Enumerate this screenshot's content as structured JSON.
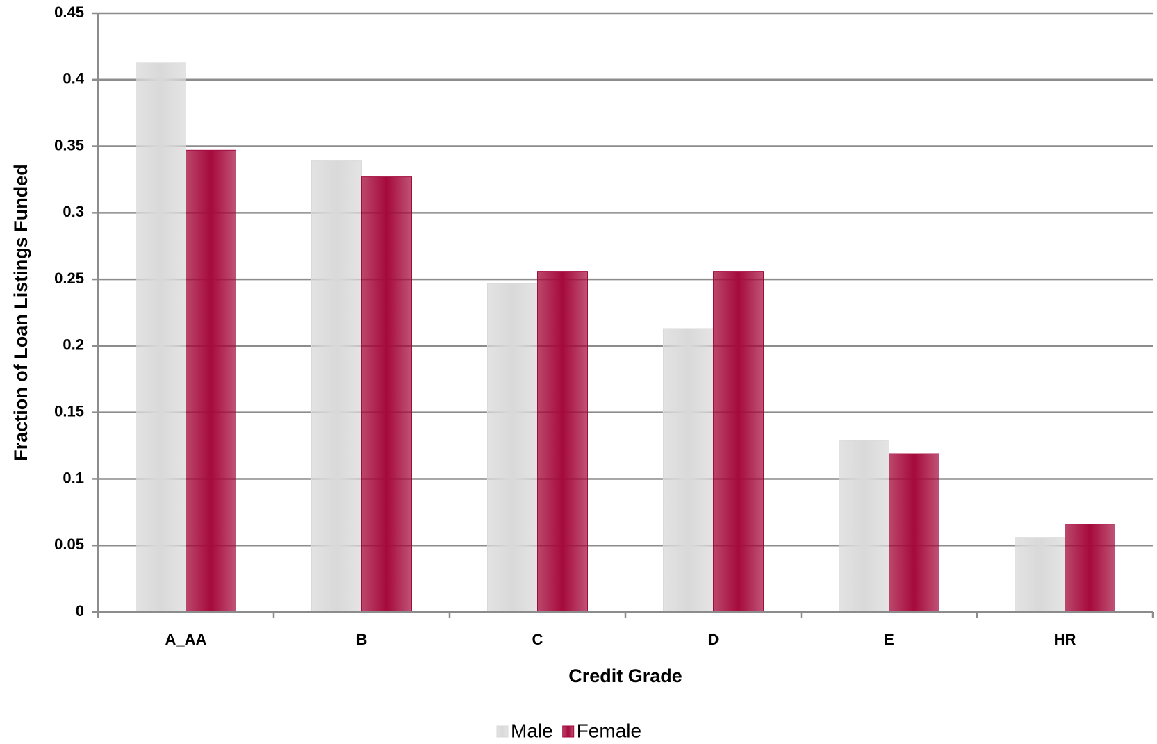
{
  "chart_data": {
    "type": "bar",
    "x_label": "Credit Grade",
    "y_label": "Fraction of Loan Listings Funded",
    "categories": [
      "A_AA",
      "B",
      "C",
      "D",
      "E",
      "HR"
    ],
    "series": [
      {
        "name": "Male",
        "color": "#d9d9d9",
        "values": [
          0.413,
          0.339,
          0.247,
          0.213,
          0.129,
          0.056
        ]
      },
      {
        "name": "Female",
        "color": "#a50a3c",
        "values": [
          0.347,
          0.327,
          0.256,
          0.256,
          0.119,
          0.066
        ]
      }
    ],
    "ylim": [
      0,
      0.45
    ],
    "yticks": [
      0,
      0.05,
      0.1,
      0.15,
      0.2,
      0.25,
      0.3,
      0.35,
      0.4,
      0.45
    ],
    "grid": true,
    "legend": "bottom"
  }
}
